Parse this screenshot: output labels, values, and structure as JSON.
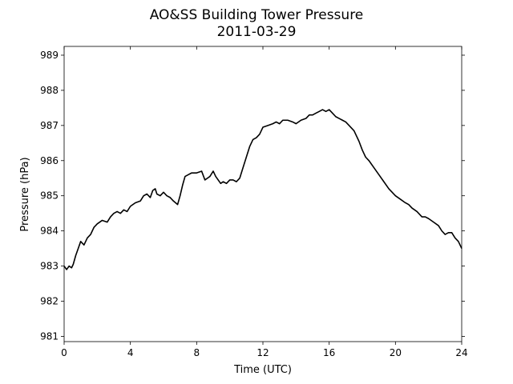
{
  "chart_data": {
    "type": "line",
    "title": "AO&SS Building Tower Pressure",
    "subtitle": "2011-03-29",
    "xlabel": "Time (UTC)",
    "ylabel": "Pressure (hPa)",
    "xlim": [
      0,
      24
    ],
    "ylim": [
      980.85,
      989.25
    ],
    "xticks": [
      0,
      4,
      8,
      12,
      16,
      20,
      24
    ],
    "yticks": [
      981,
      982,
      983,
      984,
      985,
      986,
      987,
      988,
      989
    ],
    "grid": false,
    "line_color": "#000000",
    "series": [
      {
        "x": [
          0,
          0.15,
          0.3,
          0.45,
          0.55,
          0.7,
          0.85,
          1.0,
          1.2,
          1.4,
          1.6,
          1.8,
          2.0,
          2.3,
          2.6,
          2.8,
          3.0,
          3.2,
          3.4,
          3.6,
          3.8,
          4.0,
          4.3,
          4.6,
          4.8,
          5.0,
          5.2,
          5.35,
          5.5,
          5.6,
          5.8,
          6.0,
          6.2,
          6.4,
          6.6,
          6.85,
          7.0,
          7.15,
          7.3,
          7.5,
          7.7,
          8.0,
          8.3,
          8.5,
          8.65,
          8.8,
          9.0,
          9.15,
          9.3,
          9.45,
          9.6,
          9.8,
          10.0,
          10.2,
          10.4,
          10.6,
          10.8,
          11.0,
          11.2,
          11.4,
          11.6,
          11.8,
          12.0,
          12.3,
          12.6,
          12.8,
          13.0,
          13.2,
          13.5,
          13.8,
          14.0,
          14.3,
          14.6,
          14.8,
          15.0,
          15.2,
          15.4,
          15.6,
          15.8,
          16.0,
          16.2,
          16.4,
          16.6,
          16.8,
          17.0,
          17.2,
          17.5,
          17.8,
          18.0,
          18.2,
          18.4,
          18.7,
          19.0,
          19.3,
          19.6,
          19.8,
          20.0,
          20.3,
          20.6,
          20.8,
          21.0,
          21.3,
          21.6,
          21.8,
          22.0,
          22.3,
          22.6,
          22.8,
          23.0,
          23.2,
          23.4,
          23.6,
          23.8,
          24.0
        ],
        "values": [
          983.0,
          982.9,
          983.0,
          982.95,
          983.05,
          983.3,
          983.5,
          983.7,
          983.6,
          983.8,
          983.9,
          984.1,
          984.2,
          984.3,
          984.25,
          984.4,
          984.5,
          984.55,
          984.5,
          984.6,
          984.55,
          984.7,
          984.8,
          984.85,
          985.0,
          985.05,
          984.95,
          985.15,
          985.2,
          985.05,
          985.0,
          985.1,
          985.0,
          984.95,
          984.85,
          984.75,
          985.0,
          985.3,
          985.55,
          985.6,
          985.65,
          985.65,
          985.7,
          985.45,
          985.5,
          985.55,
          985.7,
          985.55,
          985.45,
          985.35,
          985.4,
          985.35,
          985.45,
          985.45,
          985.4,
          985.5,
          985.8,
          986.1,
          986.4,
          986.6,
          986.65,
          986.75,
          986.95,
          987.0,
          987.05,
          987.1,
          987.05,
          987.15,
          987.15,
          987.1,
          987.05,
          987.15,
          987.2,
          987.3,
          987.3,
          987.35,
          987.4,
          987.45,
          987.4,
          987.45,
          987.35,
          987.25,
          987.2,
          987.15,
          987.1,
          987.0,
          986.85,
          986.55,
          986.3,
          986.1,
          986.0,
          985.8,
          985.6,
          985.4,
          985.2,
          985.1,
          985.0,
          984.9,
          984.8,
          984.75,
          984.65,
          984.55,
          984.4,
          984.4,
          984.35,
          984.25,
          984.15,
          984.0,
          983.9,
          983.95,
          983.95,
          983.8,
          983.7,
          983.5
        ]
      }
    ]
  }
}
